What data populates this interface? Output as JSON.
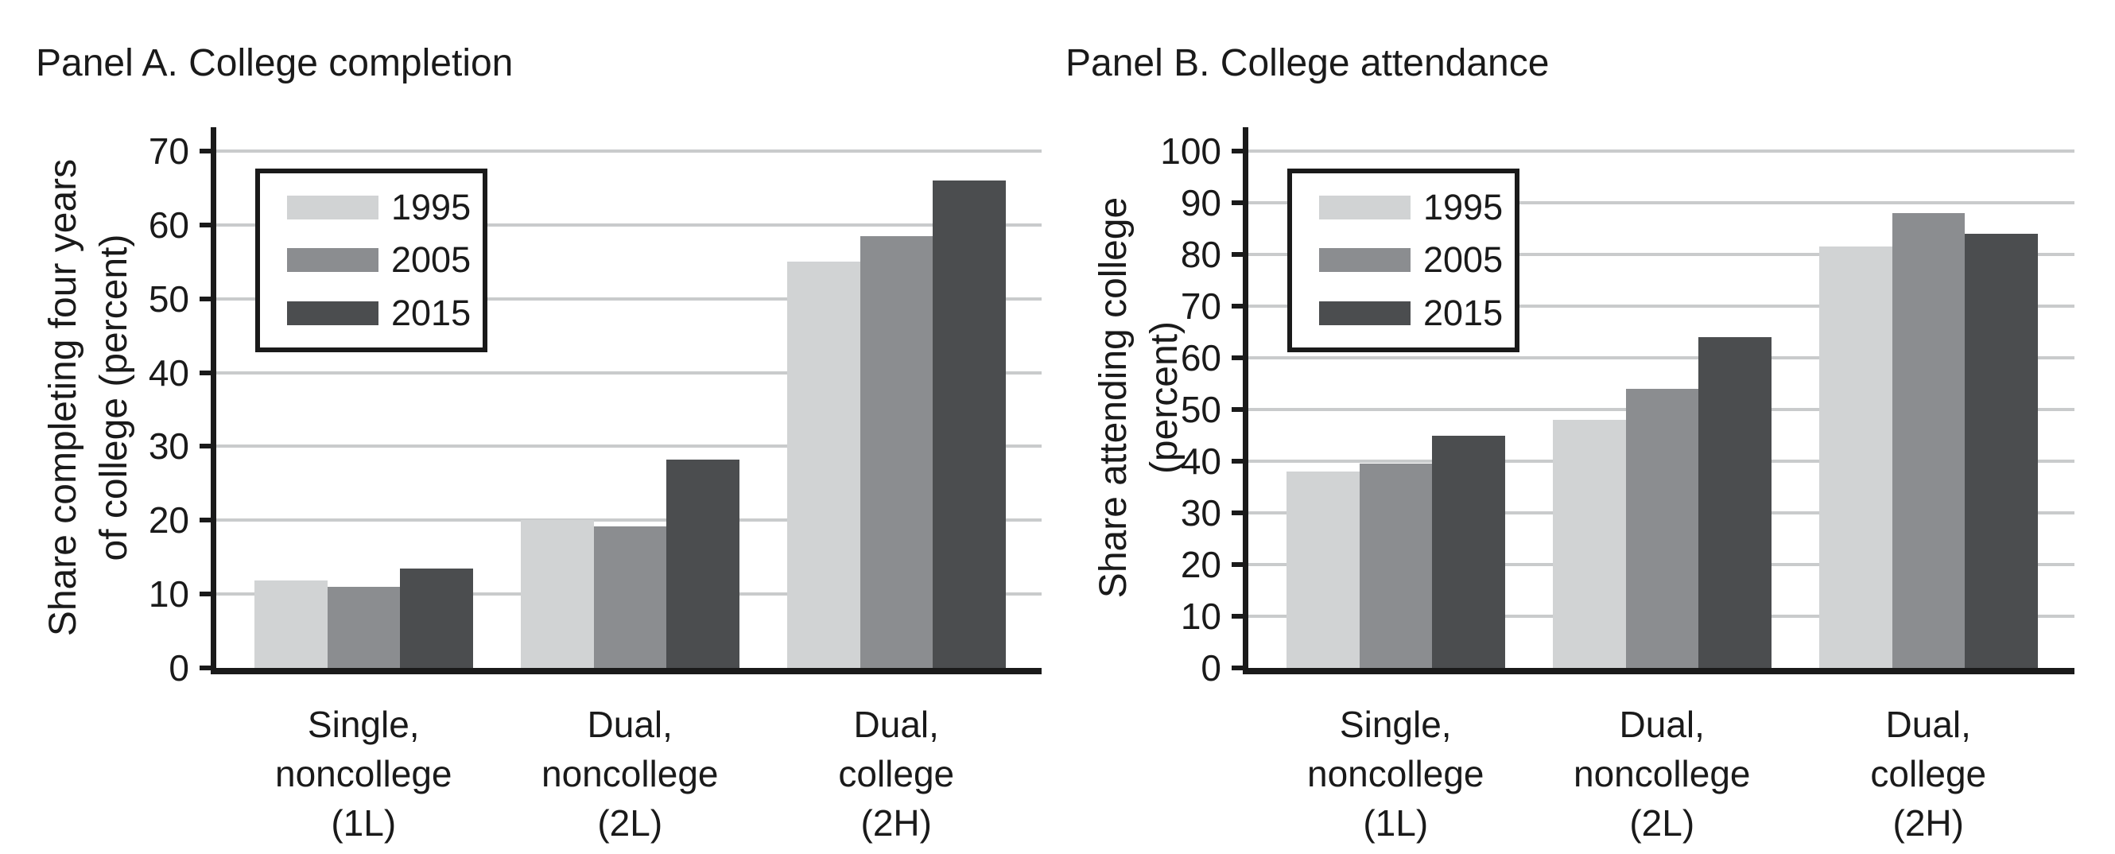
{
  "figure": {
    "background": "#ffffff",
    "text_color": "#1a1a1a",
    "axis_color": "#1a1a1a",
    "gridline_color": "#c9cbcc"
  },
  "legend": {
    "position": "upper-left",
    "items": [
      {
        "label": "1995",
        "color": "#d1d3d4"
      },
      {
        "label": "2005",
        "color": "#8b8d90"
      },
      {
        "label": "2015",
        "color": "#4b4d4f"
      }
    ]
  },
  "chart_data": [
    {
      "type": "bar",
      "panel_title": "Panel A. College completion",
      "ylabel": "Share completing four years of college (percent)",
      "ylabel_lines": [
        "Share completing four years",
        "of college (percent)"
      ],
      "ylim": [
        0,
        70
      ],
      "ytick_interval": 10,
      "grid": true,
      "legend_position": "upper-left",
      "categories": [
        "Single, noncollege (1L)",
        "Dual, noncollege (2L)",
        "Dual, college (2H)"
      ],
      "category_lines": [
        [
          "Single,",
          "noncollege",
          "(1L)"
        ],
        [
          "Dual,",
          "noncollege",
          "(2L)"
        ],
        [
          "Dual,",
          "college",
          "(2H)"
        ]
      ],
      "series": [
        {
          "name": "1995",
          "color": "#d1d3d4",
          "values": [
            11.8,
            20.0,
            55.0
          ]
        },
        {
          "name": "2005",
          "color": "#8b8d90",
          "values": [
            11.0,
            19.2,
            58.5
          ]
        },
        {
          "name": "2015",
          "color": "#4b4d4f",
          "values": [
            13.5,
            28.2,
            66.0
          ]
        }
      ]
    },
    {
      "type": "bar",
      "panel_title": "Panel B. College attendance",
      "ylabel": "Share attending college (percent)",
      "ylabel_lines": [
        "Share attending college",
        "(percent)"
      ],
      "ylim": [
        0,
        100
      ],
      "ytick_interval": 10,
      "grid": true,
      "legend_position": "upper-left",
      "categories": [
        "Single, noncollege (1L)",
        "Dual, noncollege (2L)",
        "Dual, college (2H)"
      ],
      "category_lines": [
        [
          "Single,",
          "noncollege",
          "(1L)"
        ],
        [
          "Dual,",
          "noncollege",
          "(2L)"
        ],
        [
          "Dual,",
          "college",
          "(2H)"
        ]
      ],
      "series": [
        {
          "name": "1995",
          "color": "#d1d3d4",
          "values": [
            38.0,
            48.0,
            81.5
          ]
        },
        {
          "name": "2005",
          "color": "#8b8d90",
          "values": [
            39.5,
            54.0,
            88.0
          ]
        },
        {
          "name": "2015",
          "color": "#4b4d4f",
          "values": [
            45.0,
            64.0,
            84.0
          ]
        }
      ]
    }
  ]
}
